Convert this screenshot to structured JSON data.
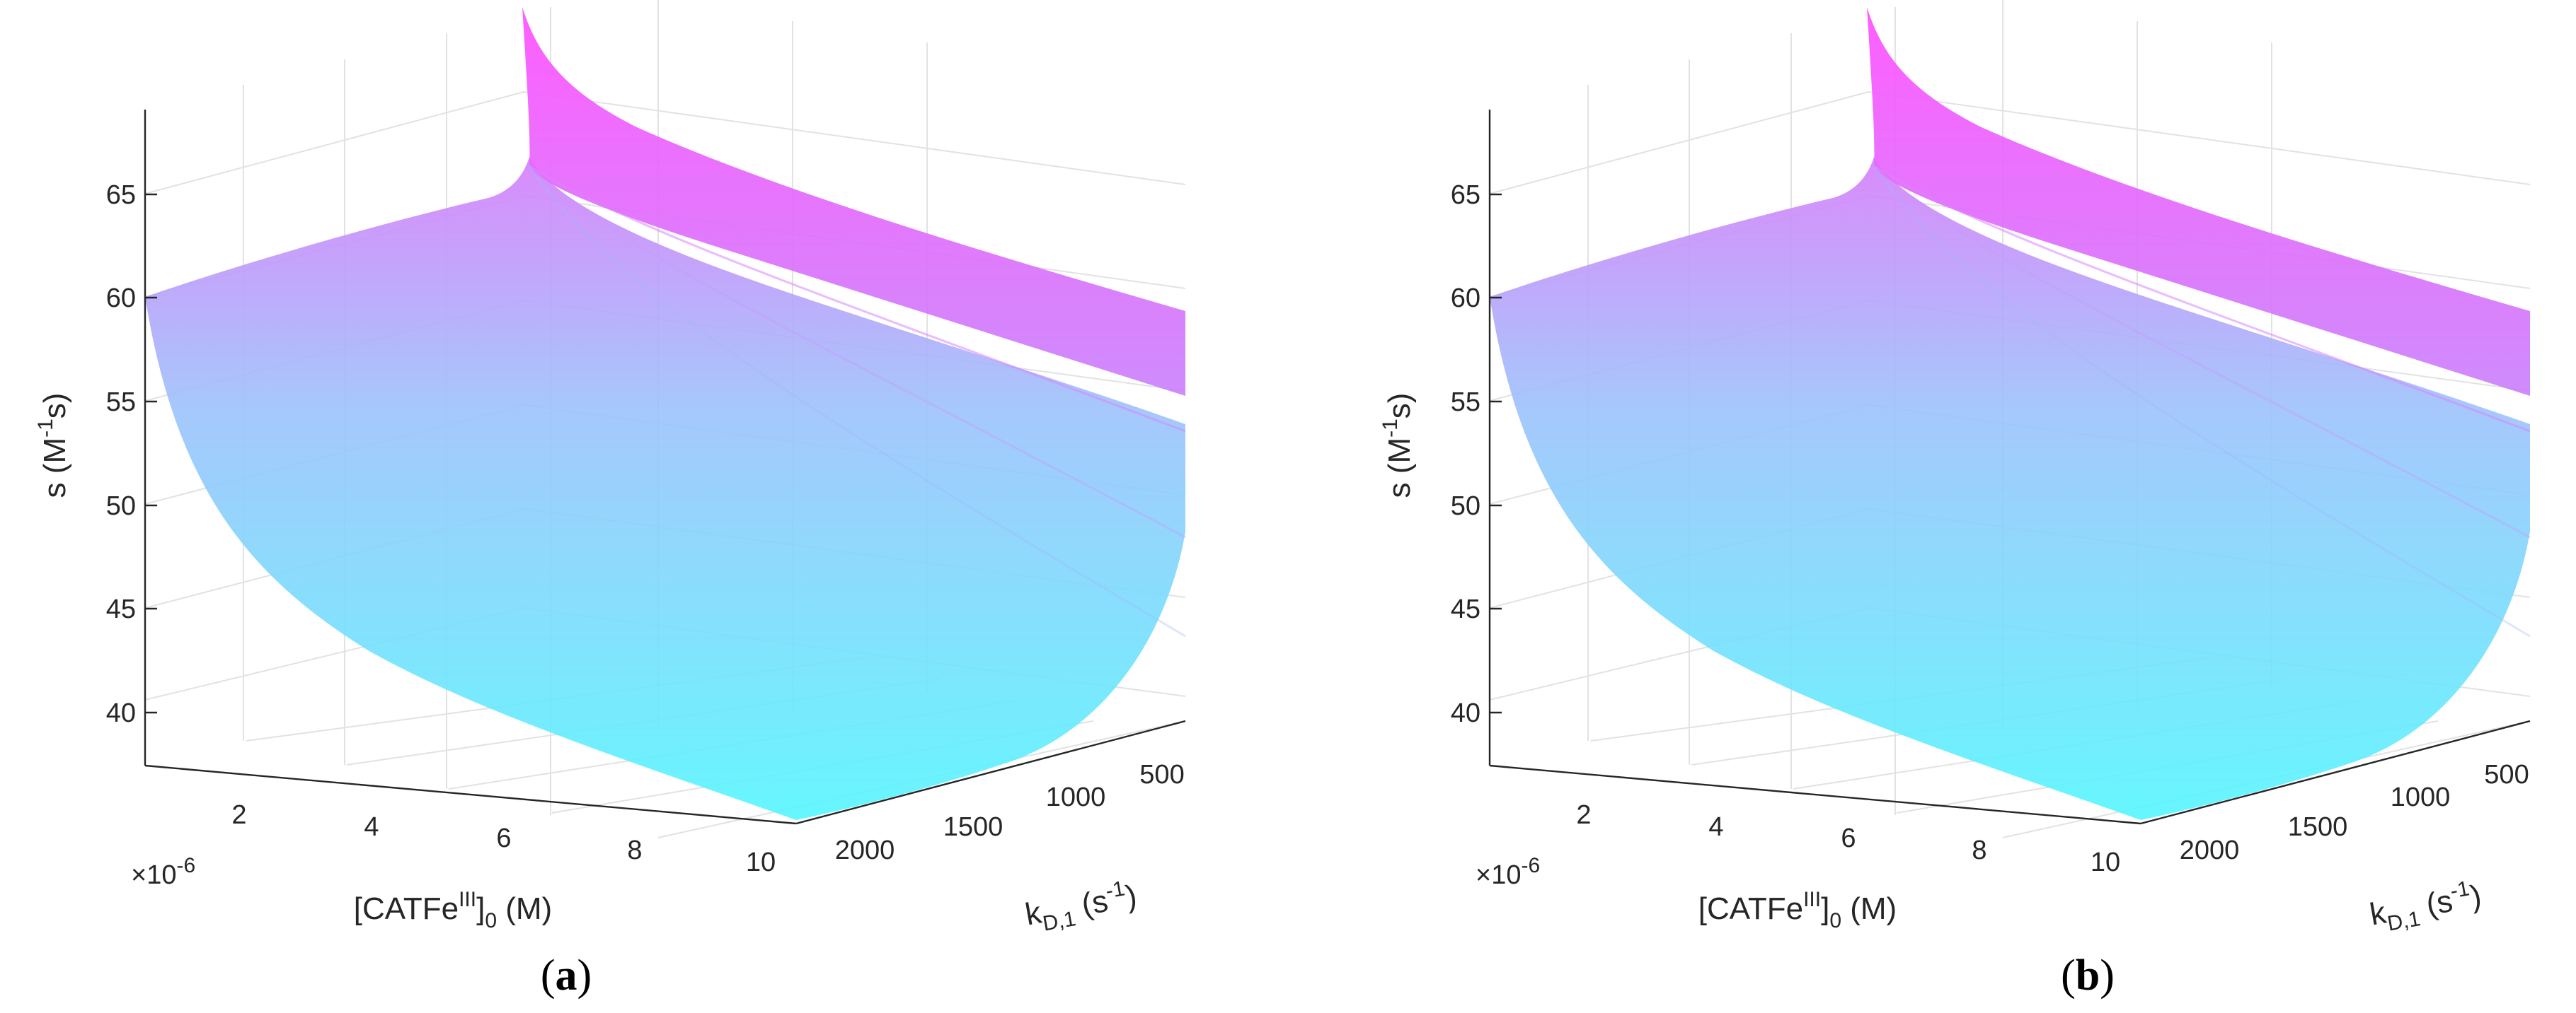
{
  "chart_data": [
    {
      "panel": "a",
      "type": "surface",
      "zlabel_main": "s (M",
      "zlabel_sup": "-1",
      "zlabel_tail": "s)",
      "xlabel_main": "[CATFe",
      "xlabel_sup": "III",
      "xlabel_sub": "0",
      "xlabel_tail": " (M)",
      "ylabel_main": "k",
      "ylabel_sub": "D,1",
      "ylabel_mid": " (s",
      "ylabel_sup": "-1",
      "ylabel_tail": ")",
      "x_exponent_times": "×10",
      "x_exponent_power": "-6",
      "x_ticks": [
        "2",
        "4",
        "6",
        "8",
        "10"
      ],
      "y_ticks": [
        "500",
        "1000",
        "1500",
        "2000"
      ],
      "z_ticks": [
        "40",
        "45",
        "50",
        "55",
        "60",
        "65"
      ],
      "xlim": [
        0.5,
        10.5
      ],
      "ylim": [
        300,
        2100
      ],
      "zlim": [
        37,
        68
      ],
      "colormap": [
        "#00ffff",
        "#ff00ff"
      ],
      "corner_values": {
        "x_min_y_max": 59.5,
        "x_max_y_max": 36.5,
        "x_max_y_min": 58.5
      },
      "panel_label": "a"
    },
    {
      "panel": "b",
      "type": "surface",
      "zlabel_main": "s (M",
      "zlabel_sup": "-1",
      "zlabel_tail": "s)",
      "xlabel_main": "[CATFe",
      "xlabel_sup": "III",
      "xlabel_sub": "0",
      "xlabel_tail": " (M)",
      "ylabel_main": "k",
      "ylabel_sub": "D,1",
      "ylabel_mid": " (s",
      "ylabel_sup": "-1",
      "ylabel_tail": ")",
      "x_exponent_times": "×10",
      "x_exponent_power": "-6",
      "x_ticks": [
        "2",
        "4",
        "6",
        "8",
        "10"
      ],
      "y_ticks": [
        "500",
        "1000",
        "1500",
        "2000"
      ],
      "z_ticks": [
        "40",
        "45",
        "50",
        "55",
        "60",
        "65"
      ],
      "xlim": [
        0.5,
        10.5
      ],
      "ylim": [
        300,
        2100
      ],
      "zlim": [
        37,
        68
      ],
      "colormap": [
        "#00ffff",
        "#ff00ff"
      ],
      "corner_values": {
        "x_min_y_max": 59.5,
        "x_max_y_max": 36.5,
        "x_max_y_min": 58.5
      },
      "panel_label": "b"
    }
  ],
  "paren_open": "(",
  "paren_close": ")"
}
